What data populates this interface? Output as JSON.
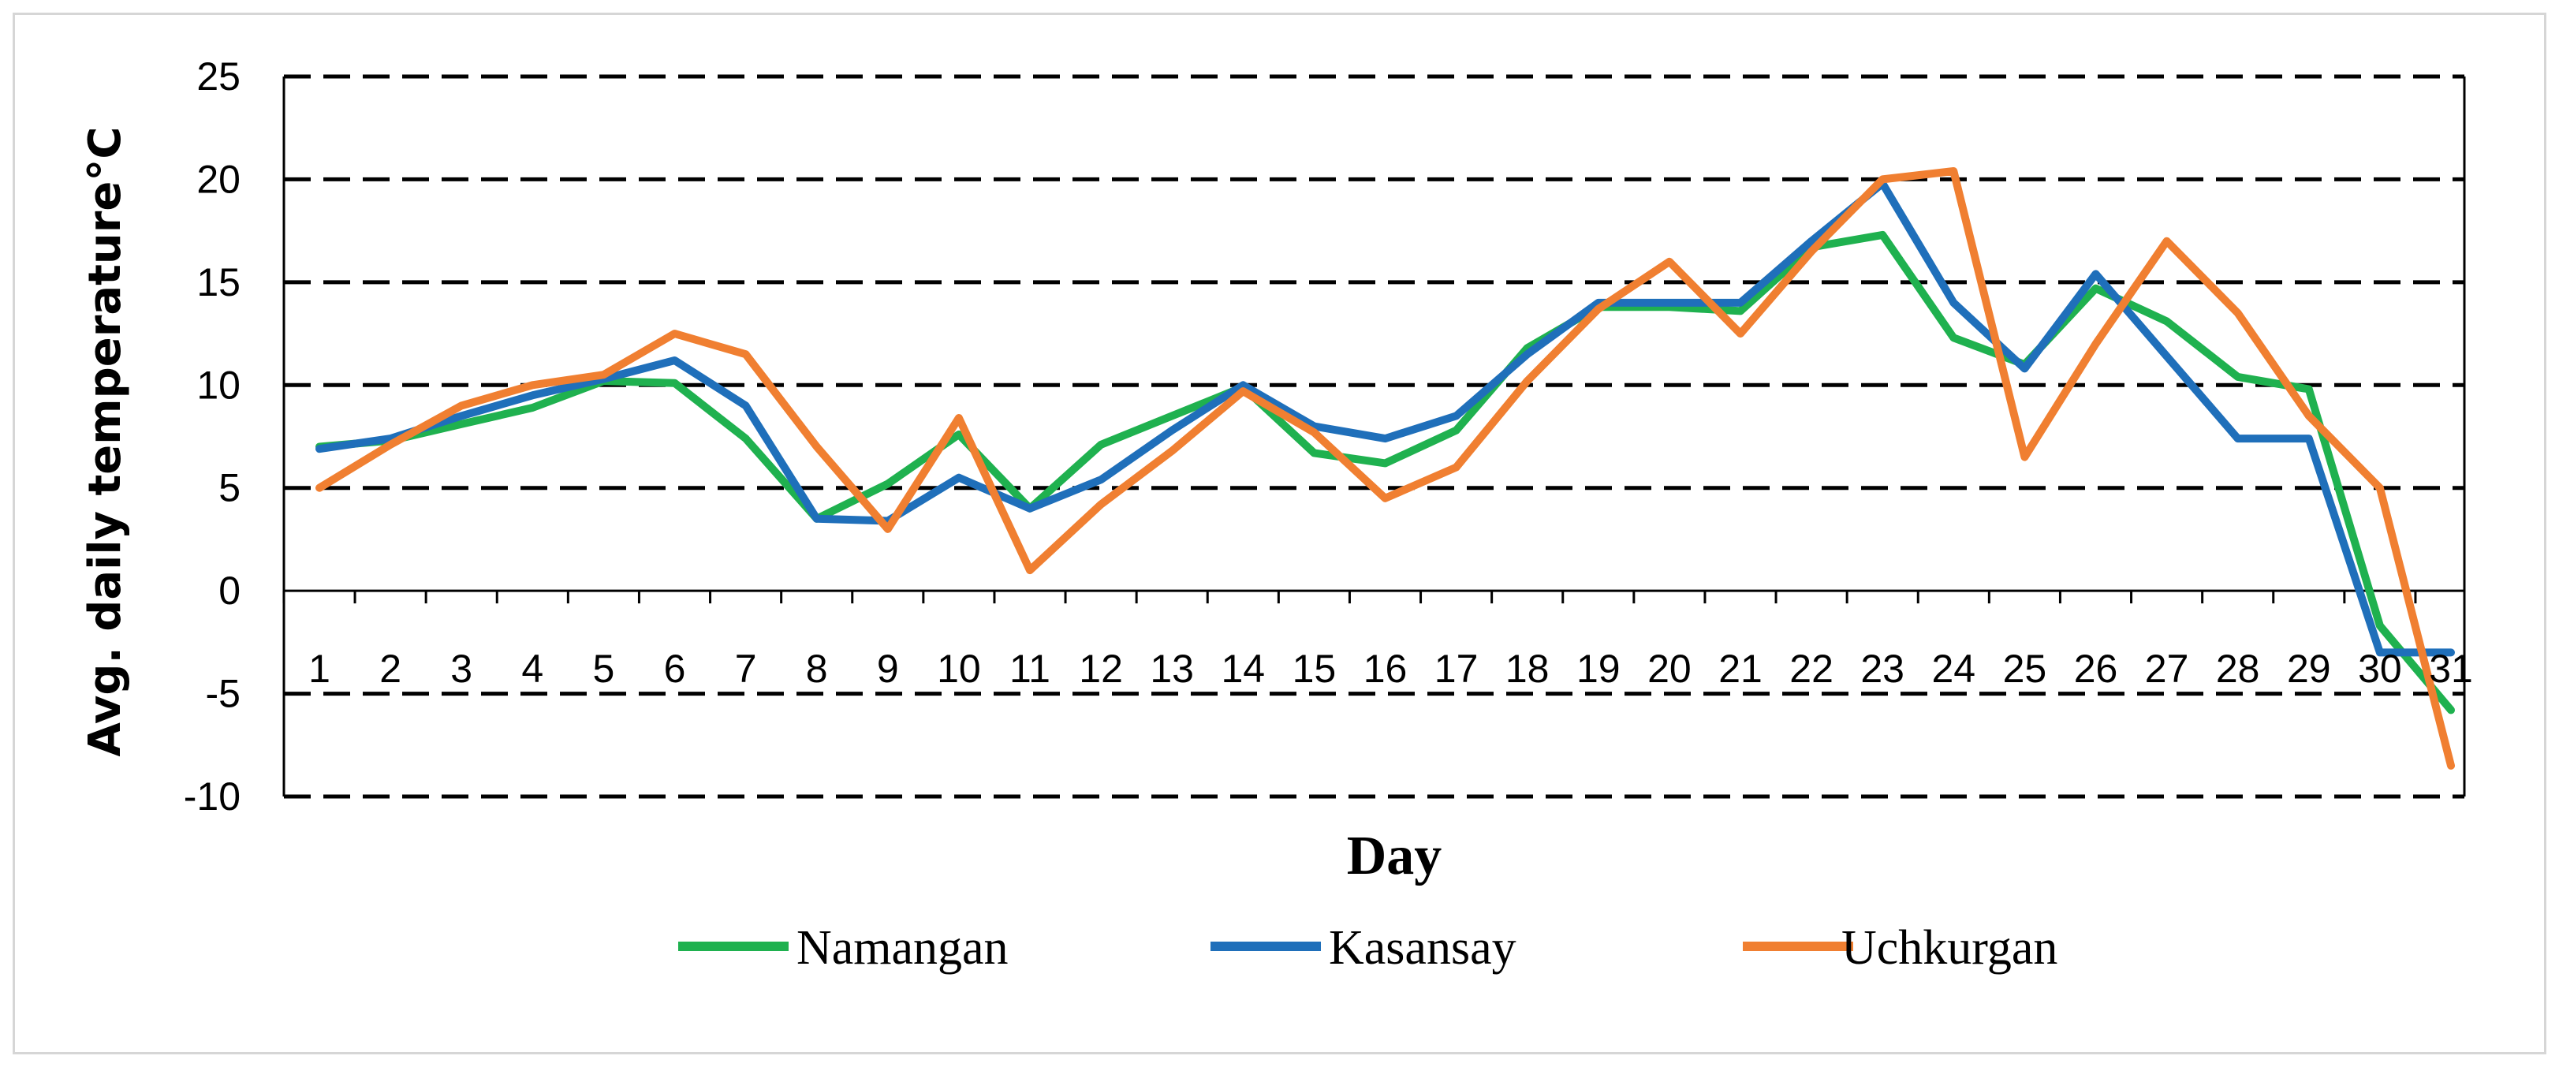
{
  "chart_data": {
    "type": "line",
    "title": "",
    "xlabel": "Day",
    "ylabel": "Avg. daily temperature°C",
    "ylim": [
      -10,
      25
    ],
    "yticks": [
      25,
      20,
      15,
      10,
      5,
      0,
      -5,
      -10
    ],
    "grid": "horizontal dashed",
    "legend_position": "bottom",
    "categories": [
      "1",
      "2",
      "3",
      "4",
      "5",
      "6",
      "7",
      "8",
      "9",
      "10",
      "11",
      "12",
      "13",
      "14",
      "15",
      "16",
      "17",
      "18",
      "19",
      "20",
      "21",
      "22",
      "23",
      "24",
      "25",
      "26",
      "27",
      "28",
      "29",
      "30",
      "31"
    ],
    "series": [
      {
        "name": "Namangan",
        "color": "#1fb14f",
        "values": [
          7.0,
          7.3,
          8.1,
          8.9,
          10.2,
          10.1,
          7.4,
          3.5,
          5.2,
          7.6,
          4.0,
          7.1,
          8.5,
          9.9,
          6.7,
          6.2,
          7.8,
          11.8,
          13.8,
          13.8,
          13.6,
          16.7,
          17.3,
          12.3,
          11.0,
          14.7,
          13.1,
          10.4,
          9.8,
          -1.7,
          -5.8
        ]
      },
      {
        "name": "Kasansay",
        "color": "#1f6fba",
        "values": [
          6.9,
          7.4,
          8.5,
          9.5,
          10.3,
          11.2,
          9.0,
          3.5,
          3.4,
          5.5,
          4.0,
          5.4,
          7.8,
          10.0,
          8.0,
          7.4,
          8.5,
          11.5,
          14.0,
          14.0,
          14.0,
          17.0,
          19.8,
          14.0,
          10.8,
          15.4,
          11.4,
          7.4,
          7.4,
          -3.0,
          -3.0
        ]
      },
      {
        "name": "Uchkurgan",
        "color": "#f07f31",
        "values": [
          5.0,
          7.1,
          9.0,
          10.0,
          10.5,
          12.5,
          11.5,
          7.0,
          3.0,
          8.4,
          1.0,
          4.2,
          6.8,
          9.7,
          7.7,
          4.5,
          6.0,
          10.2,
          13.7,
          16.0,
          12.5,
          16.5,
          20.0,
          20.4,
          6.5,
          12.0,
          17.0,
          13.5,
          8.5,
          5.0,
          -8.5
        ]
      }
    ]
  }
}
